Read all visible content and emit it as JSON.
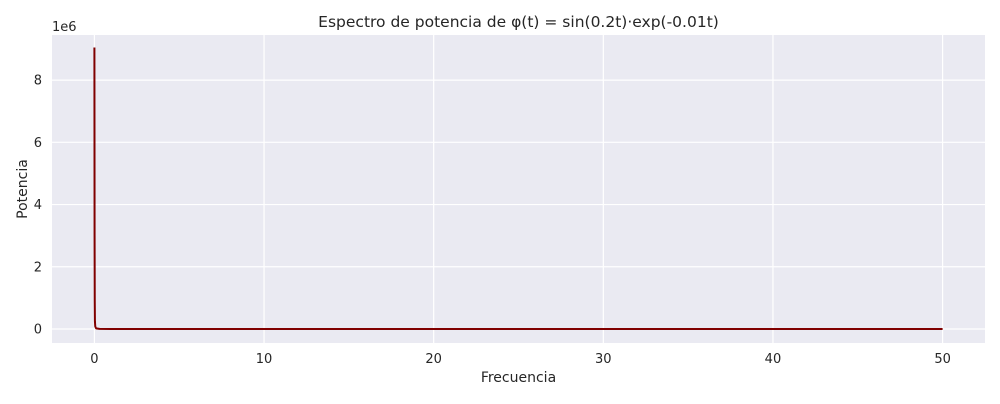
{
  "chart_data": {
    "type": "line",
    "title": "Espectro de potencia de φ(t) = sin(0.2t)·exp(-0.01t)",
    "xlabel": "Frecuencia",
    "ylabel": "Potencia",
    "y_offset_label": "1e6",
    "y_scale_factor": 1000000,
    "xlim": [
      -2.5,
      52.5
    ],
    "ylim": [
      -450000,
      9450000
    ],
    "x_ticks": [
      0,
      10,
      20,
      30,
      40,
      50
    ],
    "y_ticks": [
      0,
      2000000,
      4000000,
      6000000,
      8000000
    ],
    "x_tick_labels": [
      "0",
      "10",
      "20",
      "30",
      "40",
      "50"
    ],
    "y_tick_labels": [
      "0",
      "2",
      "4",
      "6",
      "8"
    ],
    "grid": true,
    "legend": "none",
    "series": [
      {
        "color": "#800000",
        "x": [
          0,
          0.01,
          0.02,
          0.03,
          0.05,
          0.1,
          0.3,
          1,
          5,
          10,
          20,
          30,
          40,
          50
        ],
        "y": [
          9050000,
          3000000,
          900000,
          250000,
          80000,
          20000,
          3000,
          500,
          50,
          10,
          3,
          2,
          1,
          1
        ]
      }
    ],
    "colors": {
      "background": "#eaeaf2",
      "grid": "#ffffff",
      "line": "#800000"
    }
  }
}
